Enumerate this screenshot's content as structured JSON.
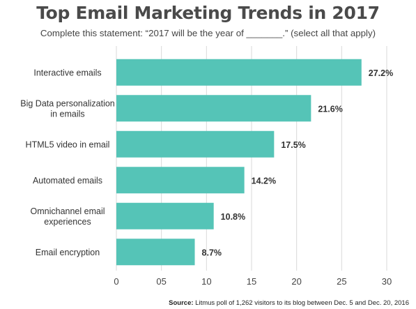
{
  "title": "Top Email Marketing Trends in 2017",
  "subtitle": "Complete this statement: “2017 will be the year of _______.” (select all that apply)",
  "footer": {
    "source_label": "Source:",
    "source_text": "Litmus poll of 1,262 visitors to its blog between Dec. 5 and Dec. 20, 2016"
  },
  "colors": {
    "bar": "#55c4b7",
    "grid": "#d9d9d9",
    "text": "#333333"
  },
  "chart_data": {
    "type": "bar",
    "orientation": "horizontal",
    "title": "Top Email Marketing Trends in 2017",
    "subtitle": "Complete this statement: “2017 will be the year of _______.” (select all that apply)",
    "categories": [
      [
        "Interactive emails"
      ],
      [
        "Big Data personalization",
        "in emails"
      ],
      [
        "HTML5 video in email"
      ],
      [
        "Automated emails"
      ],
      [
        "Omnichannel email",
        "experiences"
      ],
      [
        "Email encryption"
      ]
    ],
    "values": [
      27.2,
      21.6,
      17.5,
      14.2,
      10.8,
      8.7
    ],
    "value_labels": [
      "27.2%",
      "21.6%",
      "17.5%",
      "14.2%",
      "10.8%",
      "8.7%"
    ],
    "xlim": [
      0,
      30
    ],
    "xticks": [
      0,
      5,
      10,
      15,
      20,
      25,
      30
    ],
    "xtick_labels": [
      "0",
      "05",
      "10",
      "15",
      "20",
      "25",
      "30"
    ],
    "grid": true,
    "xlabel": "",
    "ylabel": ""
  }
}
